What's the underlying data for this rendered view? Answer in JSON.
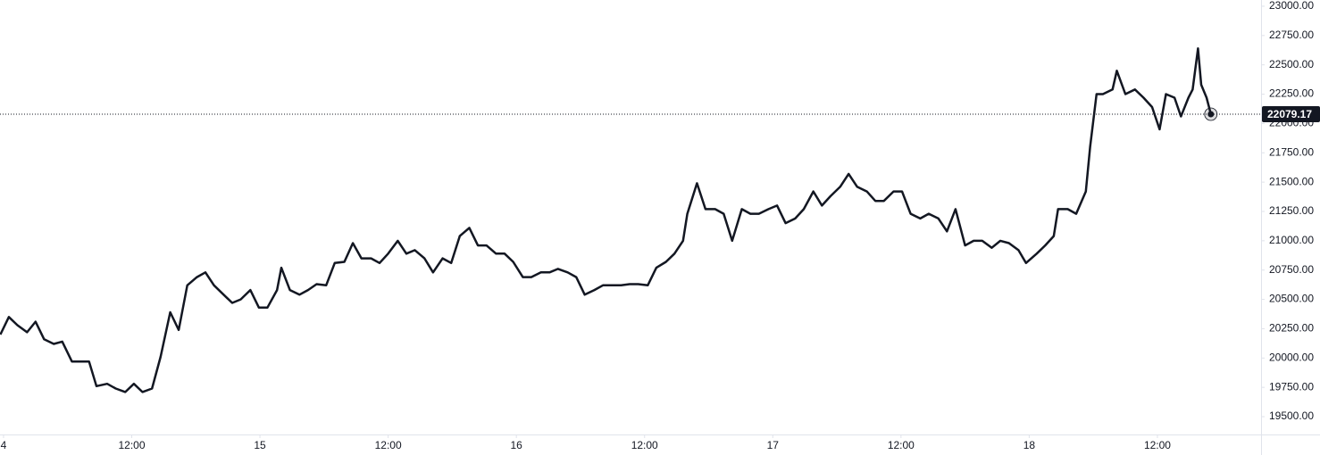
{
  "chart_data": {
    "type": "line",
    "x": [
      -0.3,
      0.5,
      1.3,
      2.2,
      3.0,
      3.8,
      4.7,
      5.5,
      6.4,
      7.2,
      8.0,
      8.7,
      9.7,
      10.5,
      11.4,
      12.2,
      13.0,
      13.9,
      14.7,
      15.6,
      16.4,
      17.2,
      18.1,
      18.9,
      19.7,
      20.6,
      21.4,
      22.2,
      23.1,
      23.9,
      24.7,
      25.6,
      26.0,
      26.8,
      27.7,
      28.5,
      29.3,
      30.2,
      31.0,
      31.9,
      32.7,
      33.5,
      34.4,
      35.2,
      36.0,
      36.9,
      37.7,
      38.5,
      39.4,
      40.2,
      41.1,
      41.9,
      42.7,
      43.6,
      44.4,
      45.2,
      46.1,
      46.9,
      47.7,
      48.6,
      49.4,
      50.3,
      51.1,
      51.9,
      52.8,
      53.6,
      54.4,
      55.3,
      56.1,
      56.9,
      57.8,
      58.6,
      59.4,
      60.3,
      61.1,
      62.0,
      62.8,
      63.6,
      64.0,
      64.9,
      65.7,
      66.6,
      67.4,
      68.2,
      69.1,
      69.9,
      70.7,
      71.6,
      72.4,
      73.2,
      74.1,
      74.9,
      75.8,
      76.6,
      77.4,
      78.3,
      79.1,
      79.9,
      80.8,
      81.6,
      82.4,
      83.3,
      84.1,
      84.9,
      85.8,
      86.6,
      87.5,
      88.3,
      89.1,
      90.0,
      90.8,
      91.6,
      92.5,
      93.3,
      94.1,
      95.0,
      95.7,
      96.7,
      97.5,
      98.3,
      98.7,
      99.6,
      100.4,
      101.3,
      101.7,
      102.3,
      102.9,
      103.8,
      104.2,
      105.0,
      105.9,
      106.7,
      107.5,
      108.2,
      108.8,
      109.6,
      110.2,
      110.9,
      111.3,
      111.8,
      112.1,
      112.6,
      113.0
    ],
    "values": [
      20200,
      20350,
      20280,
      20220,
      20310,
      20160,
      20120,
      20140,
      19970,
      19970,
      19970,
      19760,
      19780,
      19740,
      19710,
      19780,
      19710,
      19740,
      20010,
      20390,
      20240,
      20620,
      20690,
      20730,
      20620,
      20540,
      20470,
      20500,
      20580,
      20430,
      20430,
      20580,
      20770,
      20580,
      20540,
      20580,
      20630,
      20620,
      20810,
      20820,
      20980,
      20850,
      20850,
      20810,
      20890,
      21000,
      20890,
      20920,
      20850,
      20730,
      20850,
      20810,
      21040,
      21110,
      20960,
      20960,
      20890,
      20890,
      20820,
      20690,
      20690,
      20730,
      20730,
      20760,
      20730,
      20690,
      20540,
      20580,
      20620,
      20620,
      20620,
      20630,
      20630,
      20620,
      20770,
      20820,
      20890,
      21000,
      21230,
      21490,
      21270,
      21270,
      21230,
      21000,
      21270,
      21230,
      21230,
      21270,
      21300,
      21150,
      21190,
      21270,
      21420,
      21300,
      21380,
      21460,
      21570,
      21460,
      21420,
      21340,
      21340,
      21420,
      21420,
      21230,
      21190,
      21230,
      21190,
      21080,
      21270,
      20960,
      21000,
      21000,
      20940,
      21000,
      20980,
      20920,
      20810,
      20890,
      20960,
      21040,
      21270,
      21270,
      21230,
      21420,
      21800,
      22250,
      22250,
      22290,
      22450,
      22250,
      22290,
      22220,
      22140,
      21950,
      22250,
      22220,
      22060,
      22220,
      22290,
      22640,
      22330,
      22220,
      22079.17
    ],
    "color": "#131722",
    "xlim": [
      -0.33,
      117.7
    ],
    "xticks": [
      {
        "value": 0,
        "label": "4"
      },
      {
        "value": 12,
        "label": "12:00"
      },
      {
        "value": 24,
        "label": "15"
      },
      {
        "value": 36,
        "label": "12:00"
      },
      {
        "value": 48,
        "label": "16"
      },
      {
        "value": 60,
        "label": "12:00"
      },
      {
        "value": 72,
        "label": "17"
      },
      {
        "value": 84,
        "label": "12:00"
      },
      {
        "value": 96,
        "label": "18"
      },
      {
        "value": 108,
        "label": "12:00"
      }
    ],
    "ylim": [
      19348,
      23053
    ],
    "yticks": [
      {
        "value": 19500,
        "label": "19500.00"
      },
      {
        "value": 19750,
        "label": "19750.00"
      },
      {
        "value": 20000,
        "label": "20000.00"
      },
      {
        "value": 20250,
        "label": "20250.00"
      },
      {
        "value": 20500,
        "label": "20500.00"
      },
      {
        "value": 20750,
        "label": "20750.00"
      },
      {
        "value": 21000,
        "label": "21000.00"
      },
      {
        "value": 21250,
        "label": "21250.00"
      },
      {
        "value": 21500,
        "label": "21500.00"
      },
      {
        "value": 21750,
        "label": "21750.00"
      },
      {
        "value": 22000,
        "label": "22000.00"
      },
      {
        "value": 22250,
        "label": "22250.00"
      },
      {
        "value": 22500,
        "label": "22500.00"
      },
      {
        "value": 22750,
        "label": "22750.00"
      },
      {
        "value": 23000,
        "label": "23000.00"
      }
    ],
    "grid": false
  }
}
